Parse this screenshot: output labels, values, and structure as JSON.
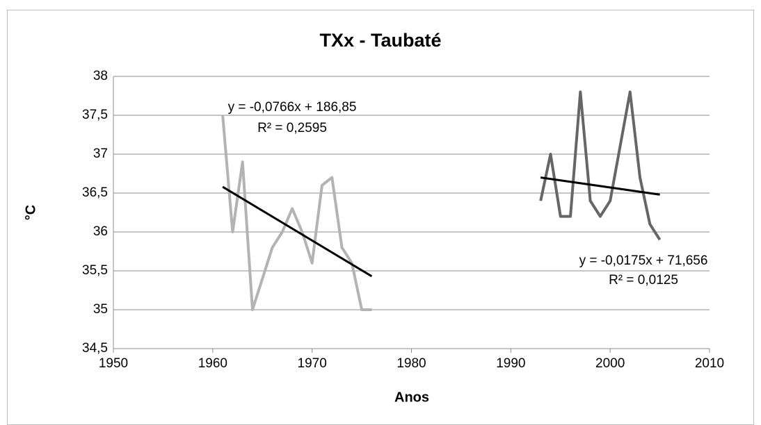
{
  "chart_data": {
    "type": "line",
    "title": "TXx - Taubaté",
    "x_label": "Anos",
    "y_label": "°C",
    "xlim": [
      1950,
      2010
    ],
    "xticks": [
      1950,
      1960,
      1970,
      1980,
      1990,
      2000,
      2010
    ],
    "ylim": [
      34.5,
      38
    ],
    "yticks": [
      {
        "value": 34.5,
        "label": "34,5"
      },
      35,
      {
        "value": 35.5,
        "label": "35,5"
      },
      36,
      {
        "value": 36.5,
        "label": "36,5"
      },
      37,
      {
        "value": 37.5,
        "label": "37,5"
      },
      38
    ],
    "grid": true,
    "series": [
      {
        "color": "#b3b3b3",
        "x": [
          1961,
          1962,
          1963,
          1964,
          1965,
          1966,
          1967,
          1968,
          1969,
          1970,
          1971,
          1972,
          1973,
          1974,
          1975,
          1976
        ],
        "values": [
          37.5,
          36.0,
          36.9,
          35.0,
          35.4,
          35.8,
          36.0,
          36.3,
          36.0,
          35.6,
          36.6,
          36.7,
          35.8,
          35.6,
          35.0,
          35.0
        ]
      },
      {
        "color": "#666666",
        "x": [
          1993,
          1994,
          1995,
          1996,
          1997,
          1998,
          1999,
          2000,
          2001,
          2002,
          2003,
          2004,
          2005
        ],
        "values": [
          36.4,
          37.0,
          36.2,
          36.2,
          37.8,
          36.4,
          36.2,
          36.4,
          37.1,
          37.8,
          36.7,
          36.1,
          35.9
        ]
      }
    ],
    "trendlines": [
      {
        "color": "#000000",
        "x": [
          1961,
          1976
        ],
        "values": [
          36.58,
          35.43
        ],
        "equation": "y = -0,0766x + 186,85",
        "r2": "R² = 0,2595"
      },
      {
        "color": "#000000",
        "x": [
          1993,
          2005
        ],
        "values": [
          36.7,
          36.48
        ],
        "equation": "y = -0,0175x + 71,656",
        "r2": "R² = 0,0125"
      }
    ]
  }
}
